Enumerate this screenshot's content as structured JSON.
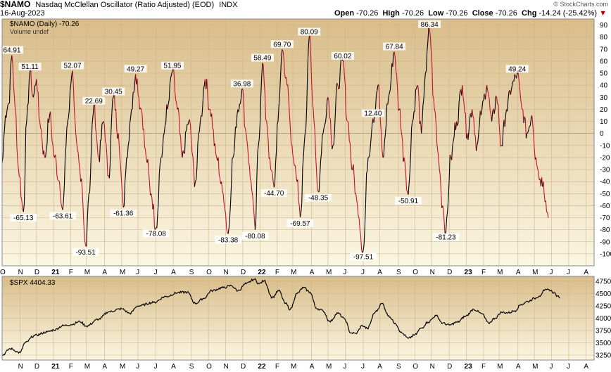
{
  "header": {
    "symbol": "$NAMO",
    "description": "Nasdaq McClellan Oscillator (Ratio Adjusted) (EOD)",
    "exchange": "INDX",
    "watermark": "© StockCharts.com",
    "date": "16-Aug-2023",
    "open_label": "Open",
    "open_value": "-70.26",
    "high_label": "High",
    "high_value": "-70.26",
    "low_label": "Low",
    "low_value": "-70.26",
    "close_label": "Close",
    "close_value": "-70.26",
    "chg_label": "Chg",
    "chg_value": "-14.24 (-25.42%)",
    "chg_arrow": "▼"
  },
  "colors": {
    "bg_top": "#d9bd8a",
    "bg_bottom": "#fbf6e2",
    "up": "#000000",
    "down": "#c8102e",
    "spx": "#000000",
    "zero_line": "#000000"
  },
  "top_panel": {
    "legend": "$NAMO (Daily) -70.26",
    "volume_note": "Volume undef"
  },
  "bottom_panel": {
    "legend": "$SPX 4404.33"
  },
  "chart_data": [
    {
      "type": "line",
      "title": "$NAMO Nasdaq McClellan Oscillator (Ratio Adjusted) (EOD)",
      "ylim": [
        -110,
        95
      ],
      "yticks": [
        90,
        80,
        70,
        60,
        50,
        40,
        30,
        20,
        10,
        0,
        -10,
        -20,
        -30,
        -40,
        -50,
        -60,
        -70,
        -80,
        -90,
        -100
      ],
      "xticks": [
        {
          "label": "O",
          "i": 0
        },
        {
          "label": "N",
          "i": 22
        },
        {
          "label": "D",
          "i": 42
        },
        {
          "label": "21",
          "i": 63,
          "bold": true
        },
        {
          "label": "F",
          "i": 84
        },
        {
          "label": "M",
          "i": 103
        },
        {
          "label": "A",
          "i": 125
        },
        {
          "label": "M",
          "i": 146
        },
        {
          "label": "J",
          "i": 166
        },
        {
          "label": "J",
          "i": 188
        },
        {
          "label": "A",
          "i": 209
        },
        {
          "label": "S",
          "i": 231
        },
        {
          "label": "O",
          "i": 252
        },
        {
          "label": "N",
          "i": 273
        },
        {
          "label": "D",
          "i": 294
        },
        {
          "label": "22",
          "i": 315,
          "bold": true
        },
        {
          "label": "F",
          "i": 336
        },
        {
          "label": "M",
          "i": 355
        },
        {
          "label": "A",
          "i": 378
        },
        {
          "label": "M",
          "i": 398
        },
        {
          "label": "J",
          "i": 419
        },
        {
          "label": "J",
          "i": 441
        },
        {
          "label": "A",
          "i": 461
        },
        {
          "label": "S",
          "i": 484
        },
        {
          "label": "O",
          "i": 504
        },
        {
          "label": "N",
          "i": 525
        },
        {
          "label": "D",
          "i": 546
        },
        {
          "label": "23",
          "i": 567,
          "bold": true
        },
        {
          "label": "F",
          "i": 588
        },
        {
          "label": "M",
          "i": 607
        },
        {
          "label": "A",
          "i": 630
        },
        {
          "label": "M",
          "i": 650
        },
        {
          "label": "J",
          "i": 671
        },
        {
          "label": "J",
          "i": 692
        },
        {
          "label": "A",
          "i": 713
        }
      ],
      "n": 724,
      "keypoints": [
        [
          0,
          -25
        ],
        [
          4,
          15
        ],
        [
          8,
          25
        ],
        [
          12,
          64.91
        ],
        [
          16,
          20
        ],
        [
          20,
          -30
        ],
        [
          26,
          -65.13
        ],
        [
          30,
          10
        ],
        [
          34,
          51.11
        ],
        [
          38,
          30
        ],
        [
          42,
          45
        ],
        [
          46,
          10
        ],
        [
          52,
          -20
        ],
        [
          58,
          15
        ],
        [
          64,
          -20
        ],
        [
          70,
          -40
        ],
        [
          74,
          -63.61
        ],
        [
          80,
          10
        ],
        [
          86,
          52.07
        ],
        [
          90,
          0
        ],
        [
          96,
          -40
        ],
        [
          102,
          -93.51
        ],
        [
          106,
          -50
        ],
        [
          112,
          22.69
        ],
        [
          118,
          -20
        ],
        [
          124,
          10
        ],
        [
          130,
          -35
        ],
        [
          136,
          30.45
        ],
        [
          142,
          0
        ],
        [
          148,
          -61.36
        ],
        [
          152,
          -20
        ],
        [
          158,
          20
        ],
        [
          163,
          49.27
        ],
        [
          170,
          20
        ],
        [
          176,
          -20
        ],
        [
          182,
          -50
        ],
        [
          188,
          -78.08
        ],
        [
          194,
          -20
        ],
        [
          202,
          20
        ],
        [
          208,
          51.95
        ],
        [
          214,
          20
        ],
        [
          220,
          -20
        ],
        [
          228,
          10
        ],
        [
          236,
          -40
        ],
        [
          242,
          10
        ],
        [
          248,
          45
        ],
        [
          254,
          20
        ],
        [
          262,
          -20
        ],
        [
          270,
          -50
        ],
        [
          276,
          -83.38
        ],
        [
          282,
          -20
        ],
        [
          288,
          20
        ],
        [
          293,
          36.98
        ],
        [
          298,
          0
        ],
        [
          304,
          -40
        ],
        [
          309,
          -80.08
        ],
        [
          313,
          -10
        ],
        [
          318,
          58.49
        ],
        [
          323,
          10
        ],
        [
          328,
          -30
        ],
        [
          332,
          -44.7
        ],
        [
          337,
          10
        ],
        [
          342,
          69.7
        ],
        [
          348,
          40
        ],
        [
          354,
          -10
        ],
        [
          360,
          -40
        ],
        [
          364,
          -69.57
        ],
        [
          370,
          0
        ],
        [
          375,
          80.09
        ],
        [
          380,
          20
        ],
        [
          386,
          -48.35
        ],
        [
          392,
          0
        ],
        [
          398,
          30
        ],
        [
          404,
          -10
        ],
        [
          410,
          40
        ],
        [
          416,
          60.02
        ],
        [
          422,
          10
        ],
        [
          428,
          -30
        ],
        [
          434,
          -60
        ],
        [
          441,
          -97.51
        ],
        [
          447,
          -20
        ],
        [
          453,
          12.4
        ],
        [
          459,
          40
        ],
        [
          465,
          -20
        ],
        [
          472,
          30
        ],
        [
          479,
          67.84
        ],
        [
          485,
          20
        ],
        [
          491,
          -20
        ],
        [
          496,
          -50.91
        ],
        [
          501,
          10
        ],
        [
          507,
          40
        ],
        [
          512,
          0
        ],
        [
          517,
          50
        ],
        [
          522,
          86.34
        ],
        [
          528,
          20
        ],
        [
          533,
          -20
        ],
        [
          538,
          -60
        ],
        [
          542,
          -81.23
        ],
        [
          548,
          -20
        ],
        [
          555,
          10
        ],
        [
          562,
          40
        ],
        [
          568,
          0
        ],
        [
          574,
          20
        ],
        [
          580,
          -10
        ],
        [
          586,
          20
        ],
        [
          592,
          40
        ],
        [
          598,
          10
        ],
        [
          604,
          30
        ],
        [
          610,
          -10
        ],
        [
          616,
          20
        ],
        [
          623,
          40
        ],
        [
          629,
          49.24
        ],
        [
          635,
          20
        ],
        [
          641,
          0
        ],
        [
          647,
          15
        ],
        [
          652,
          -20
        ],
        [
          657,
          -38
        ],
        [
          661,
          -40
        ],
        [
          664,
          -56.02
        ],
        [
          667,
          -70.26
        ]
      ],
      "labels": [
        {
          "i": 12,
          "v": "64.91",
          "pos": "above"
        },
        {
          "i": 34,
          "v": "51.11",
          "pos": "above"
        },
        {
          "i": 26,
          "v": "-65.13",
          "pos": "below"
        },
        {
          "i": 86,
          "v": "52.07",
          "pos": "above"
        },
        {
          "i": 74,
          "v": "-63.61",
          "pos": "below"
        },
        {
          "i": 102,
          "v": "-93.51",
          "pos": "below"
        },
        {
          "i": 112,
          "v": "22.69",
          "pos": "above"
        },
        {
          "i": 136,
          "v": "30.45",
          "pos": "above"
        },
        {
          "i": 148,
          "v": "-61.36",
          "pos": "below"
        },
        {
          "i": 163,
          "v": "49.27",
          "pos": "above"
        },
        {
          "i": 188,
          "v": "-78.08",
          "pos": "below"
        },
        {
          "i": 208,
          "v": "51.95",
          "pos": "above"
        },
        {
          "i": 276,
          "v": "-83.38",
          "pos": "below"
        },
        {
          "i": 293,
          "v": "36.98",
          "pos": "above"
        },
        {
          "i": 309,
          "v": "-80.08",
          "pos": "below"
        },
        {
          "i": 318,
          "v": "58.49",
          "pos": "above"
        },
        {
          "i": 332,
          "v": "-44.70",
          "pos": "below"
        },
        {
          "i": 342,
          "v": "69.70",
          "pos": "above"
        },
        {
          "i": 364,
          "v": "-69.57",
          "pos": "below"
        },
        {
          "i": 375,
          "v": "80.09",
          "pos": "above"
        },
        {
          "i": 386,
          "v": "-48.35",
          "pos": "below"
        },
        {
          "i": 416,
          "v": "60.02",
          "pos": "above"
        },
        {
          "i": 441,
          "v": "-97.51",
          "pos": "below"
        },
        {
          "i": 453,
          "v": "12.40",
          "pos": "above"
        },
        {
          "i": 479,
          "v": "67.84",
          "pos": "above"
        },
        {
          "i": 496,
          "v": "-50.91",
          "pos": "below"
        },
        {
          "i": 522,
          "v": "86.34",
          "pos": "above"
        },
        {
          "i": 542,
          "v": "-81.23",
          "pos": "below"
        },
        {
          "i": 629,
          "v": "49.24",
          "pos": "above"
        }
      ]
    },
    {
      "type": "line",
      "title": "$SPX 4404.33",
      "ylim": [
        3150,
        4850
      ],
      "yticks": [
        4750,
        4500,
        4250,
        4000,
        3750,
        3500,
        3250
      ],
      "xticks": [
        {
          "label": "N",
          "i": 22
        },
        {
          "label": "D",
          "i": 42
        },
        {
          "label": "21",
          "i": 63,
          "bold": true
        },
        {
          "label": "F",
          "i": 84
        },
        {
          "label": "M",
          "i": 103
        },
        {
          "label": "A",
          "i": 125
        },
        {
          "label": "M",
          "i": 146
        },
        {
          "label": "J",
          "i": 166
        },
        {
          "label": "J",
          "i": 188
        },
        {
          "label": "A",
          "i": 209
        },
        {
          "label": "S",
          "i": 231
        },
        {
          "label": "O",
          "i": 252
        },
        {
          "label": "N",
          "i": 273
        },
        {
          "label": "D",
          "i": 294
        },
        {
          "label": "22",
          "i": 315,
          "bold": true
        },
        {
          "label": "F",
          "i": 336
        },
        {
          "label": "M",
          "i": 355
        },
        {
          "label": "A",
          "i": 378
        },
        {
          "label": "M",
          "i": 398
        },
        {
          "label": "J",
          "i": 419
        },
        {
          "label": "J",
          "i": 441
        },
        {
          "label": "A",
          "i": 461
        },
        {
          "label": "S",
          "i": 484
        },
        {
          "label": "O",
          "i": 504
        },
        {
          "label": "N",
          "i": 525
        },
        {
          "label": "D",
          "i": 546
        },
        {
          "label": "23",
          "i": 567,
          "bold": true
        },
        {
          "label": "F",
          "i": 588
        },
        {
          "label": "M",
          "i": 607
        },
        {
          "label": "A",
          "i": 630
        },
        {
          "label": "M",
          "i": 650
        },
        {
          "label": "J",
          "i": 671
        },
        {
          "label": "J",
          "i": 692
        },
        {
          "label": "A",
          "i": 713
        }
      ],
      "keypoints": [
        [
          0,
          3250
        ],
        [
          10,
          3380
        ],
        [
          22,
          3300
        ],
        [
          28,
          3500
        ],
        [
          40,
          3650
        ],
        [
          55,
          3720
        ],
        [
          63,
          3760
        ],
        [
          75,
          3850
        ],
        [
          84,
          3870
        ],
        [
          95,
          3930
        ],
        [
          103,
          3840
        ],
        [
          118,
          3980
        ],
        [
          130,
          4130
        ],
        [
          146,
          4190
        ],
        [
          156,
          4100
        ],
        [
          166,
          4250
        ],
        [
          185,
          4320
        ],
        [
          200,
          4440
        ],
        [
          215,
          4520
        ],
        [
          226,
          4530
        ],
        [
          236,
          4300
        ],
        [
          246,
          4400
        ],
        [
          256,
          4560
        ],
        [
          270,
          4620
        ],
        [
          280,
          4660
        ],
        [
          288,
          4560
        ],
        [
          298,
          4700
        ],
        [
          308,
          4790
        ],
        [
          314,
          4700
        ],
        [
          320,
          4760
        ],
        [
          330,
          4420
        ],
        [
          338,
          4560
        ],
        [
          346,
          4300
        ],
        [
          352,
          4180
        ],
        [
          360,
          4500
        ],
        [
          368,
          4620
        ],
        [
          376,
          4530
        ],
        [
          384,
          4200
        ],
        [
          392,
          4150
        ],
        [
          400,
          3930
        ],
        [
          410,
          4100
        ],
        [
          418,
          3990
        ],
        [
          426,
          3700
        ],
        [
          432,
          3690
        ],
        [
          440,
          3850
        ],
        [
          446,
          3790
        ],
        [
          456,
          4130
        ],
        [
          464,
          4300
        ],
        [
          472,
          4050
        ],
        [
          480,
          3900
        ],
        [
          488,
          3700
        ],
        [
          496,
          3590
        ],
        [
          504,
          3660
        ],
        [
          512,
          3800
        ],
        [
          520,
          3920
        ],
        [
          530,
          4050
        ],
        [
          538,
          3900
        ],
        [
          546,
          3860
        ],
        [
          556,
          3920
        ],
        [
          566,
          4040
        ],
        [
          576,
          4180
        ],
        [
          586,
          4090
        ],
        [
          594,
          3900
        ],
        [
          602,
          4000
        ],
        [
          610,
          4120
        ],
        [
          618,
          4110
        ],
        [
          626,
          4150
        ],
        [
          634,
          4280
        ],
        [
          642,
          4340
        ],
        [
          650,
          4400
        ],
        [
          656,
          4450
        ],
        [
          662,
          4560
        ],
        [
          668,
          4580
        ],
        [
          674,
          4520
        ],
        [
          678,
          4450
        ],
        [
          681,
          4404.33
        ]
      ]
    }
  ]
}
